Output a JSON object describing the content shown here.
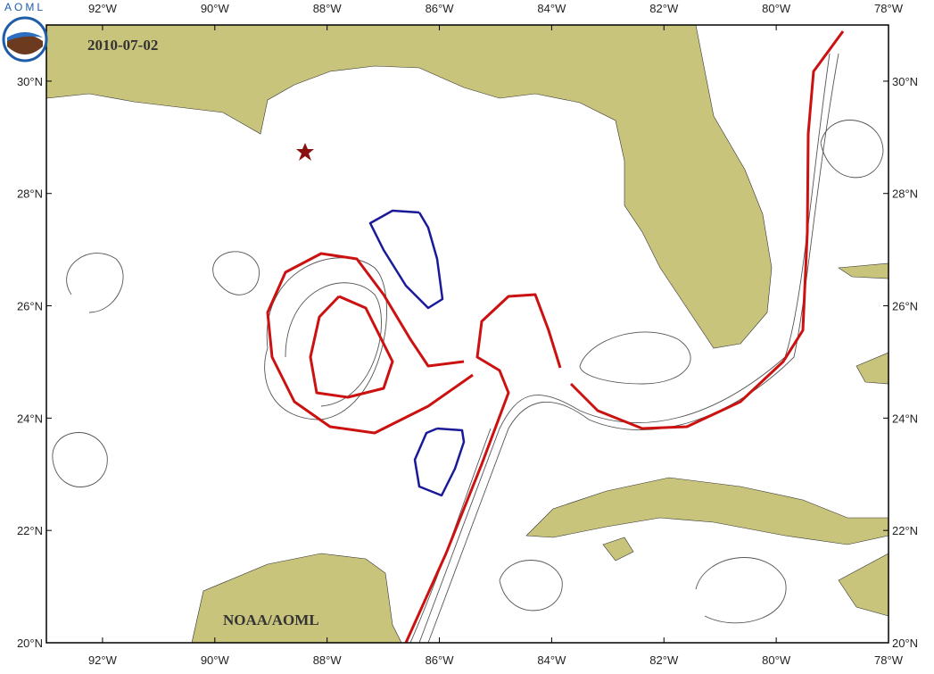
{
  "logo_text": "AOML",
  "date": "2010-07-02",
  "credit": "NOAA/AOML",
  "map": {
    "lon_range": [
      -93,
      -78
    ],
    "lat_range": [
      20,
      31
    ],
    "lon_ticks": [
      {
        "value": -92,
        "label": "92°W"
      },
      {
        "value": -90,
        "label": "90°W"
      },
      {
        "value": -88,
        "label": "88°W"
      },
      {
        "value": -86,
        "label": "86°W"
      },
      {
        "value": -84,
        "label": "84°W"
      },
      {
        "value": -82,
        "label": "82°W"
      },
      {
        "value": -80,
        "label": "80°W"
      },
      {
        "value": -78,
        "label": "78°W"
      }
    ],
    "lat_ticks": [
      {
        "value": 20,
        "label": "20°N"
      },
      {
        "value": 22,
        "label": "22°N"
      },
      {
        "value": 24,
        "label": "24°N"
      },
      {
        "value": 26,
        "label": "26°N"
      },
      {
        "value": 28,
        "label": "28°N"
      },
      {
        "value": 30,
        "label": "30°N"
      }
    ]
  }
}
